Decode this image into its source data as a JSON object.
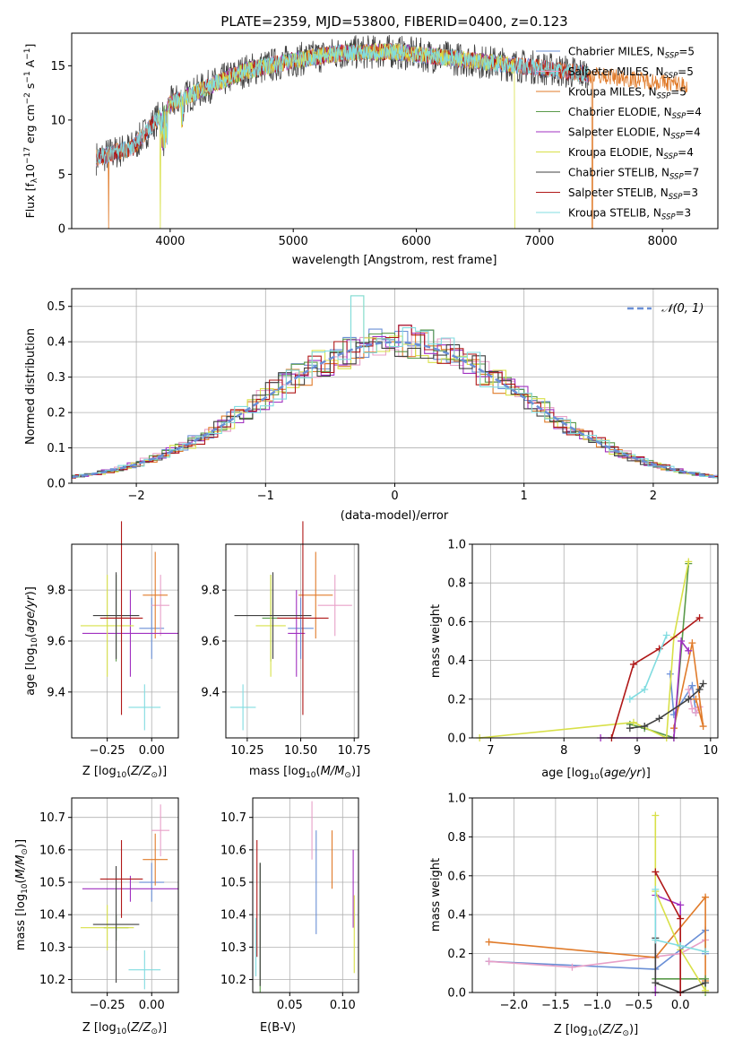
{
  "colors": {
    "chabrier_miles": "#6a8fd6",
    "salpeter_miles": "#e8a0c8",
    "kroupa_miles": "#e07b2a",
    "chabrier_elodie": "#5a9a4a",
    "salpeter_elodie": "#a030c0",
    "kroupa_elodie": "#d8e048",
    "chabrier_stelib": "#404040",
    "salpeter_stelib": "#b01818",
    "kroupa_stelib": "#80dce0",
    "normal": "#6a8fd6",
    "grid": "#b0b0b0"
  },
  "chart_data": [
    {
      "type": "line",
      "title": "PLATE=2359, MJD=53800, FIBERID=0400, z=0.123",
      "xlabel": "wavelength [Angstrom, rest frame]",
      "ylabel": "Flux [f_λ 10^-17 erg cm^-2 s^-1 A^-1]",
      "xlim": [
        3200,
        8450
      ],
      "ylim": [
        0,
        18
      ],
      "xticks": [
        4000,
        5000,
        6000,
        7000,
        8000
      ],
      "yticks": [
        0,
        5,
        10,
        15
      ],
      "grid": false,
      "legend_position": "right",
      "series": [
        {
          "name": "Chabrier MILES, N_SSP=5",
          "x": [
            3400,
            3700,
            4000,
            4300,
            4600,
            5000,
            5400,
            5800,
            6200,
            6600,
            7000,
            7400
          ],
          "y": [
            6.5,
            7.5,
            11.5,
            13.0,
            14.5,
            15.5,
            16.2,
            16.3,
            15.8,
            15.3,
            14.8,
            14.2
          ]
        },
        {
          "name": "Salpeter MILES, N_SSP=5",
          "x": [
            3400,
            3700,
            4000,
            4300,
            4600,
            5000,
            5400,
            5800,
            6200,
            6600,
            7000,
            7400
          ],
          "y": [
            6.5,
            7.5,
            11.5,
            13.0,
            14.5,
            15.5,
            16.2,
            16.3,
            15.8,
            15.3,
            14.8,
            14.2
          ]
        },
        {
          "name": "Kroupa MILES, N_SSP=5",
          "x": [
            3400,
            3500,
            3700,
            4000,
            4300,
            4600,
            5000,
            5400,
            5800,
            6200,
            6600,
            7000,
            7400,
            7800,
            8200
          ],
          "y": [
            6.5,
            0,
            7.5,
            11.5,
            13.0,
            14.5,
            15.5,
            16.2,
            16.3,
            15.8,
            15.3,
            14.8,
            14.2,
            14.0,
            13.2
          ]
        },
        {
          "name": "Chabrier ELODIE, N_SSP=4",
          "x": [
            3900,
            4300,
            4600,
            5000,
            5400,
            5800,
            6200,
            6600
          ],
          "y": [
            11.0,
            13.0,
            14.5,
            15.5,
            16.2,
            16.3,
            15.8,
            15.3
          ]
        },
        {
          "name": "Salpeter ELODIE, N_SSP=4",
          "x": [
            3900,
            4300,
            4600,
            5000,
            5400,
            5800,
            6200,
            6600
          ],
          "y": [
            11.0,
            13.0,
            14.5,
            15.5,
            16.2,
            16.3,
            15.8,
            15.3
          ]
        },
        {
          "name": "Kroupa ELODIE, N_SSP=4",
          "x": [
            3900,
            3920,
            4300,
            4600,
            5000,
            5400,
            5800,
            6200,
            6600,
            6800
          ],
          "y": [
            11.0,
            0,
            13.0,
            14.5,
            15.5,
            16.2,
            16.3,
            15.8,
            15.3,
            0
          ]
        },
        {
          "name": "Chabrier STELIB, N_SSP=7",
          "x": [
            3400,
            3700,
            4000,
            4300,
            4600,
            5000,
            5400,
            5800,
            6200,
            6600,
            7000,
            7400
          ],
          "y": [
            6.5,
            7.5,
            11.5,
            13.0,
            14.5,
            15.5,
            16.2,
            16.3,
            15.8,
            15.3,
            14.8,
            14.2
          ]
        },
        {
          "name": "Salpeter STELIB, N_SSP=3",
          "x": [
            3400,
            3700,
            4000,
            4300,
            4600,
            5000,
            5400,
            5800,
            6200,
            6600,
            7000,
            7400
          ],
          "y": [
            6.5,
            7.5,
            11.5,
            13.0,
            14.5,
            15.5,
            16.2,
            16.3,
            15.8,
            15.3,
            14.8,
            14.2
          ]
        },
        {
          "name": "Kroupa STELIB, N_SSP=3",
          "x": [
            3400,
            3700,
            4000,
            4300,
            4600,
            5000,
            5400,
            5800,
            6200,
            6600,
            7000,
            7400
          ],
          "y": [
            6.5,
            7.5,
            11.5,
            13.0,
            14.5,
            15.5,
            16.2,
            16.3,
            15.8,
            15.3,
            14.8,
            14.2
          ]
        }
      ]
    },
    {
      "type": "line",
      "xlabel": "(data-model)/error",
      "ylabel": "Normed distribution",
      "xlim": [
        -2.5,
        2.5
      ],
      "ylim": [
        0,
        0.55
      ],
      "xticks": [
        -2,
        -1,
        0,
        1,
        2
      ],
      "yticks": [
        0.0,
        0.1,
        0.2,
        0.3,
        0.4,
        0.5
      ],
      "grid": true,
      "legend_position": "top-right",
      "legend": [
        "N(0,1)"
      ],
      "x": [
        -2.5,
        -2.25,
        -2.0,
        -1.75,
        -1.5,
        -1.25,
        -1.0,
        -0.75,
        -0.5,
        -0.25,
        0.0,
        0.25,
        0.5,
        0.75,
        1.0,
        1.25,
        1.5,
        1.75,
        2.0,
        2.25,
        2.5
      ],
      "histogram": [
        0.03,
        0.05,
        0.07,
        0.1,
        0.14,
        0.18,
        0.24,
        0.29,
        0.35,
        0.38,
        0.4,
        0.38,
        0.35,
        0.29,
        0.24,
        0.18,
        0.14,
        0.1,
        0.07,
        0.05,
        0.04
      ],
      "histogram_peak": 0.53
    },
    {
      "type": "scatter",
      "xlabel": "Z [log10(Z/Z⊙)]",
      "ylabel": "age [log10(age/yr)]",
      "xlim": [
        -0.45,
        0.15
      ],
      "ylim": [
        9.22,
        9.98
      ],
      "xticks": [
        -0.25,
        0.0
      ],
      "yticks": [
        9.4,
        9.6,
        9.8
      ],
      "grid": true,
      "points": [
        {
          "x": 0.0,
          "y": 9.65,
          "xerr": 0.07,
          "yerr": 0.12
        },
        {
          "x": 0.05,
          "y": 9.74,
          "xerr": 0.05,
          "yerr": 0.12
        },
        {
          "x": 0.02,
          "y": 9.78,
          "xerr": 0.07,
          "yerr": 0.17
        },
        {
          "x": -0.2,
          "y": 9.69,
          "xerr": 0.07,
          "yerr": 0.17
        },
        {
          "x": -0.12,
          "y": 9.63,
          "xerr": 0.27,
          "yerr": 0.17
        },
        {
          "x": -0.25,
          "y": 9.66,
          "xerr": 0.15,
          "yerr": 0.2
        },
        {
          "x": -0.2,
          "y": 9.7,
          "xerr": 0.13,
          "yerr": 0.17
        },
        {
          "x": -0.17,
          "y": 9.69,
          "xerr": 0.12,
          "yerr": 0.38
        },
        {
          "x": -0.04,
          "y": 9.34,
          "xerr": 0.09,
          "yerr": 0.09
        }
      ]
    },
    {
      "type": "scatter",
      "xlabel": "mass [log10(M/M⊙)]",
      "ylabel": "",
      "xlim": [
        10.15,
        10.77
      ],
      "ylim": [
        9.22,
        9.98
      ],
      "xticks": [
        10.25,
        10.5,
        10.75
      ],
      "yticks": [
        9.4,
        9.6,
        9.8
      ],
      "grid": true,
      "points": [
        {
          "x": 10.5,
          "y": 9.65,
          "xerr": 0.06,
          "yerr": 0.12
        },
        {
          "x": 10.66,
          "y": 9.74,
          "xerr": 0.08,
          "yerr": 0.12
        },
        {
          "x": 10.57,
          "y": 9.78,
          "xerr": 0.08,
          "yerr": 0.17
        },
        {
          "x": 10.36,
          "y": 9.69,
          "xerr": 0.04,
          "yerr": 0.17
        },
        {
          "x": 10.48,
          "y": 9.63,
          "xerr": 0.04,
          "yerr": 0.17
        },
        {
          "x": 10.36,
          "y": 9.66,
          "xerr": 0.07,
          "yerr": 0.2
        },
        {
          "x": 10.37,
          "y": 9.7,
          "xerr": 0.18,
          "yerr": 0.17
        },
        {
          "x": 10.51,
          "y": 9.69,
          "xerr": 0.12,
          "yerr": 0.38
        },
        {
          "x": 10.23,
          "y": 9.34,
          "xerr": 0.06,
          "yerr": 0.09
        }
      ]
    },
    {
      "type": "line",
      "xlabel": "age [log10(age/yr)]",
      "ylabel": "mass weight",
      "xlim": [
        6.75,
        10.1
      ],
      "ylim": [
        0,
        1.0
      ],
      "xticks": [
        7,
        8,
        9,
        10
      ],
      "yticks": [
        0.0,
        0.2,
        0.4,
        0.6,
        0.8,
        1.0
      ],
      "grid": true,
      "series": [
        {
          "x": [
            9.45,
            9.5,
            9.75,
            9.8
          ],
          "y": [
            0.33,
            0.12,
            0.27,
            0.13
          ]
        },
        {
          "x": [
            9.7,
            9.75,
            9.85,
            9.8
          ],
          "y": [
            0.25,
            0.15,
            0.16,
            0.13
          ]
        },
        {
          "x": [
            9.5,
            9.75,
            9.9,
            9.8
          ],
          "y": [
            0.05,
            0.49,
            0.06,
            0.2
          ]
        },
        {
          "x": [
            8.9,
            9.1,
            9.5,
            9.7
          ],
          "y": [
            0.07,
            0.05,
            0.0,
            0.9
          ]
        },
        {
          "x": [
            8.5,
            9.5,
            9.6,
            9.7
          ],
          "y": [
            0.0,
            0.0,
            0.5,
            0.45
          ]
        },
        {
          "x": [
            6.85,
            8.95,
            9.4,
            9.5,
            9.7
          ],
          "y": [
            0.0,
            0.08,
            0.0,
            0.52,
            0.91
          ]
        },
        {
          "x": [
            8.9,
            9.1,
            9.3,
            9.7,
            9.85,
            9.9
          ],
          "y": [
            0.05,
            0.06,
            0.1,
            0.2,
            0.25,
            0.28
          ]
        },
        {
          "x": [
            8.65,
            8.95,
            9.3,
            9.85
          ],
          "y": [
            0.0,
            0.38,
            0.46,
            0.62
          ]
        },
        {
          "x": [
            8.9,
            9.1,
            9.4
          ],
          "y": [
            0.2,
            0.25,
            0.53
          ]
        }
      ]
    },
    {
      "type": "scatter",
      "xlabel": "Z [log10(Z/Z⊙)]",
      "ylabel": "mass [log10(M/M⊙)]",
      "xlim": [
        -0.45,
        0.15
      ],
      "ylim": [
        10.16,
        10.76
      ],
      "xticks": [
        -0.25,
        0.0
      ],
      "yticks": [
        10.2,
        10.3,
        10.4,
        10.5,
        10.6,
        10.7
      ],
      "grid": true,
      "points": [
        {
          "x": 0.0,
          "y": 10.5,
          "xerr": 0.07,
          "yerr": 0.06
        },
        {
          "x": 0.05,
          "y": 10.66,
          "xerr": 0.05,
          "yerr": 0.08
        },
        {
          "x": 0.02,
          "y": 10.57,
          "xerr": 0.07,
          "yerr": 0.08
        },
        {
          "x": -0.2,
          "y": 10.36,
          "xerr": 0.07,
          "yerr": 0.04
        },
        {
          "x": -0.12,
          "y": 10.48,
          "xerr": 0.27,
          "yerr": 0.04
        },
        {
          "x": -0.25,
          "y": 10.36,
          "xerr": 0.15,
          "yerr": 0.07
        },
        {
          "x": -0.2,
          "y": 10.37,
          "xerr": 0.13,
          "yerr": 0.18
        },
        {
          "x": -0.17,
          "y": 10.51,
          "xerr": 0.12,
          "yerr": 0.12
        },
        {
          "x": -0.04,
          "y": 10.23,
          "xerr": 0.09,
          "yerr": 0.06
        }
      ]
    },
    {
      "type": "scatter",
      "xlabel": "E(B-V)",
      "ylabel": "",
      "xlim": [
        0.015,
        0.115
      ],
      "ylim": [
        10.16,
        10.76
      ],
      "xticks": [
        0.05,
        0.1
      ],
      "yticks": [
        10.2,
        10.3,
        10.4,
        10.5,
        10.6,
        10.7
      ],
      "grid": true,
      "points": [
        {
          "x": 0.075,
          "y": 10.5,
          "xerr": 0,
          "yerr": 0.16
        },
        {
          "x": 0.071,
          "y": 10.66,
          "xerr": 0,
          "yerr": 0.09
        },
        {
          "x": 0.09,
          "y": 10.57,
          "xerr": 0,
          "yerr": 0.09
        },
        {
          "x": 0.022,
          "y": 10.36,
          "xerr": 0,
          "yerr": 0.2
        },
        {
          "x": 0.11,
          "y": 10.48,
          "xerr": 0,
          "yerr": 0.12
        },
        {
          "x": 0.111,
          "y": 10.34,
          "xerr": 0,
          "yerr": 0.12
        },
        {
          "x": 0.022,
          "y": 10.37,
          "xerr": 0,
          "yerr": 0.19
        },
        {
          "x": 0.019,
          "y": 10.45,
          "xerr": 0,
          "yerr": 0.18
        },
        {
          "x": 0.018,
          "y": 10.3,
          "xerr": 0,
          "yerr": 0.09
        }
      ]
    },
    {
      "type": "line",
      "xlabel": "Z [log10(Z/Z⊙)]",
      "ylabel": "mass weight",
      "xlim": [
        -2.5,
        0.45
      ],
      "ylim": [
        0,
        1.0
      ],
      "xticks": [
        -2.0,
        -1.5,
        -1.0,
        -0.5,
        0.0
      ],
      "yticks": [
        0.0,
        0.2,
        0.4,
        0.6,
        0.8,
        1.0
      ],
      "grid": true,
      "series": [
        {
          "x": [
            -2.3,
            -0.3,
            0.3,
            0.3
          ],
          "y": [
            0.16,
            0.12,
            0.32,
            0.2
          ]
        },
        {
          "x": [
            -2.3,
            -1.3,
            0.0,
            0.3
          ],
          "y": [
            0.16,
            0.13,
            0.2,
            0.27
          ]
        },
        {
          "x": [
            -2.3,
            -0.3,
            0.3,
            0.3
          ],
          "y": [
            0.26,
            0.18,
            0.49,
            0.06
          ]
        },
        {
          "x": [
            -0.3,
            -0.3,
            0.3,
            0.3
          ],
          "y": [
            0.0,
            0.07,
            0.07,
            0.0
          ]
        },
        {
          "x": [
            -0.3,
            -0.3,
            0.0,
            0.0
          ],
          "y": [
            0.0,
            0.5,
            0.45,
            0.0
          ]
        },
        {
          "x": [
            -0.3,
            -0.3,
            0.0,
            0.3
          ],
          "y": [
            0.91,
            0.52,
            0.22,
            0.01
          ]
        },
        {
          "x": [
            -0.3,
            -0.3,
            0.0,
            0.3
          ],
          "y": [
            0.28,
            0.05,
            0.0,
            0.05
          ]
        },
        {
          "x": [
            -0.3,
            0.0,
            0.0
          ],
          "y": [
            0.62,
            0.38,
            0.0
          ]
        },
        {
          "x": [
            -0.3,
            -0.3,
            0.0,
            0.3
          ],
          "y": [
            0.53,
            0.27,
            0.24,
            0.21
          ]
        }
      ]
    }
  ]
}
